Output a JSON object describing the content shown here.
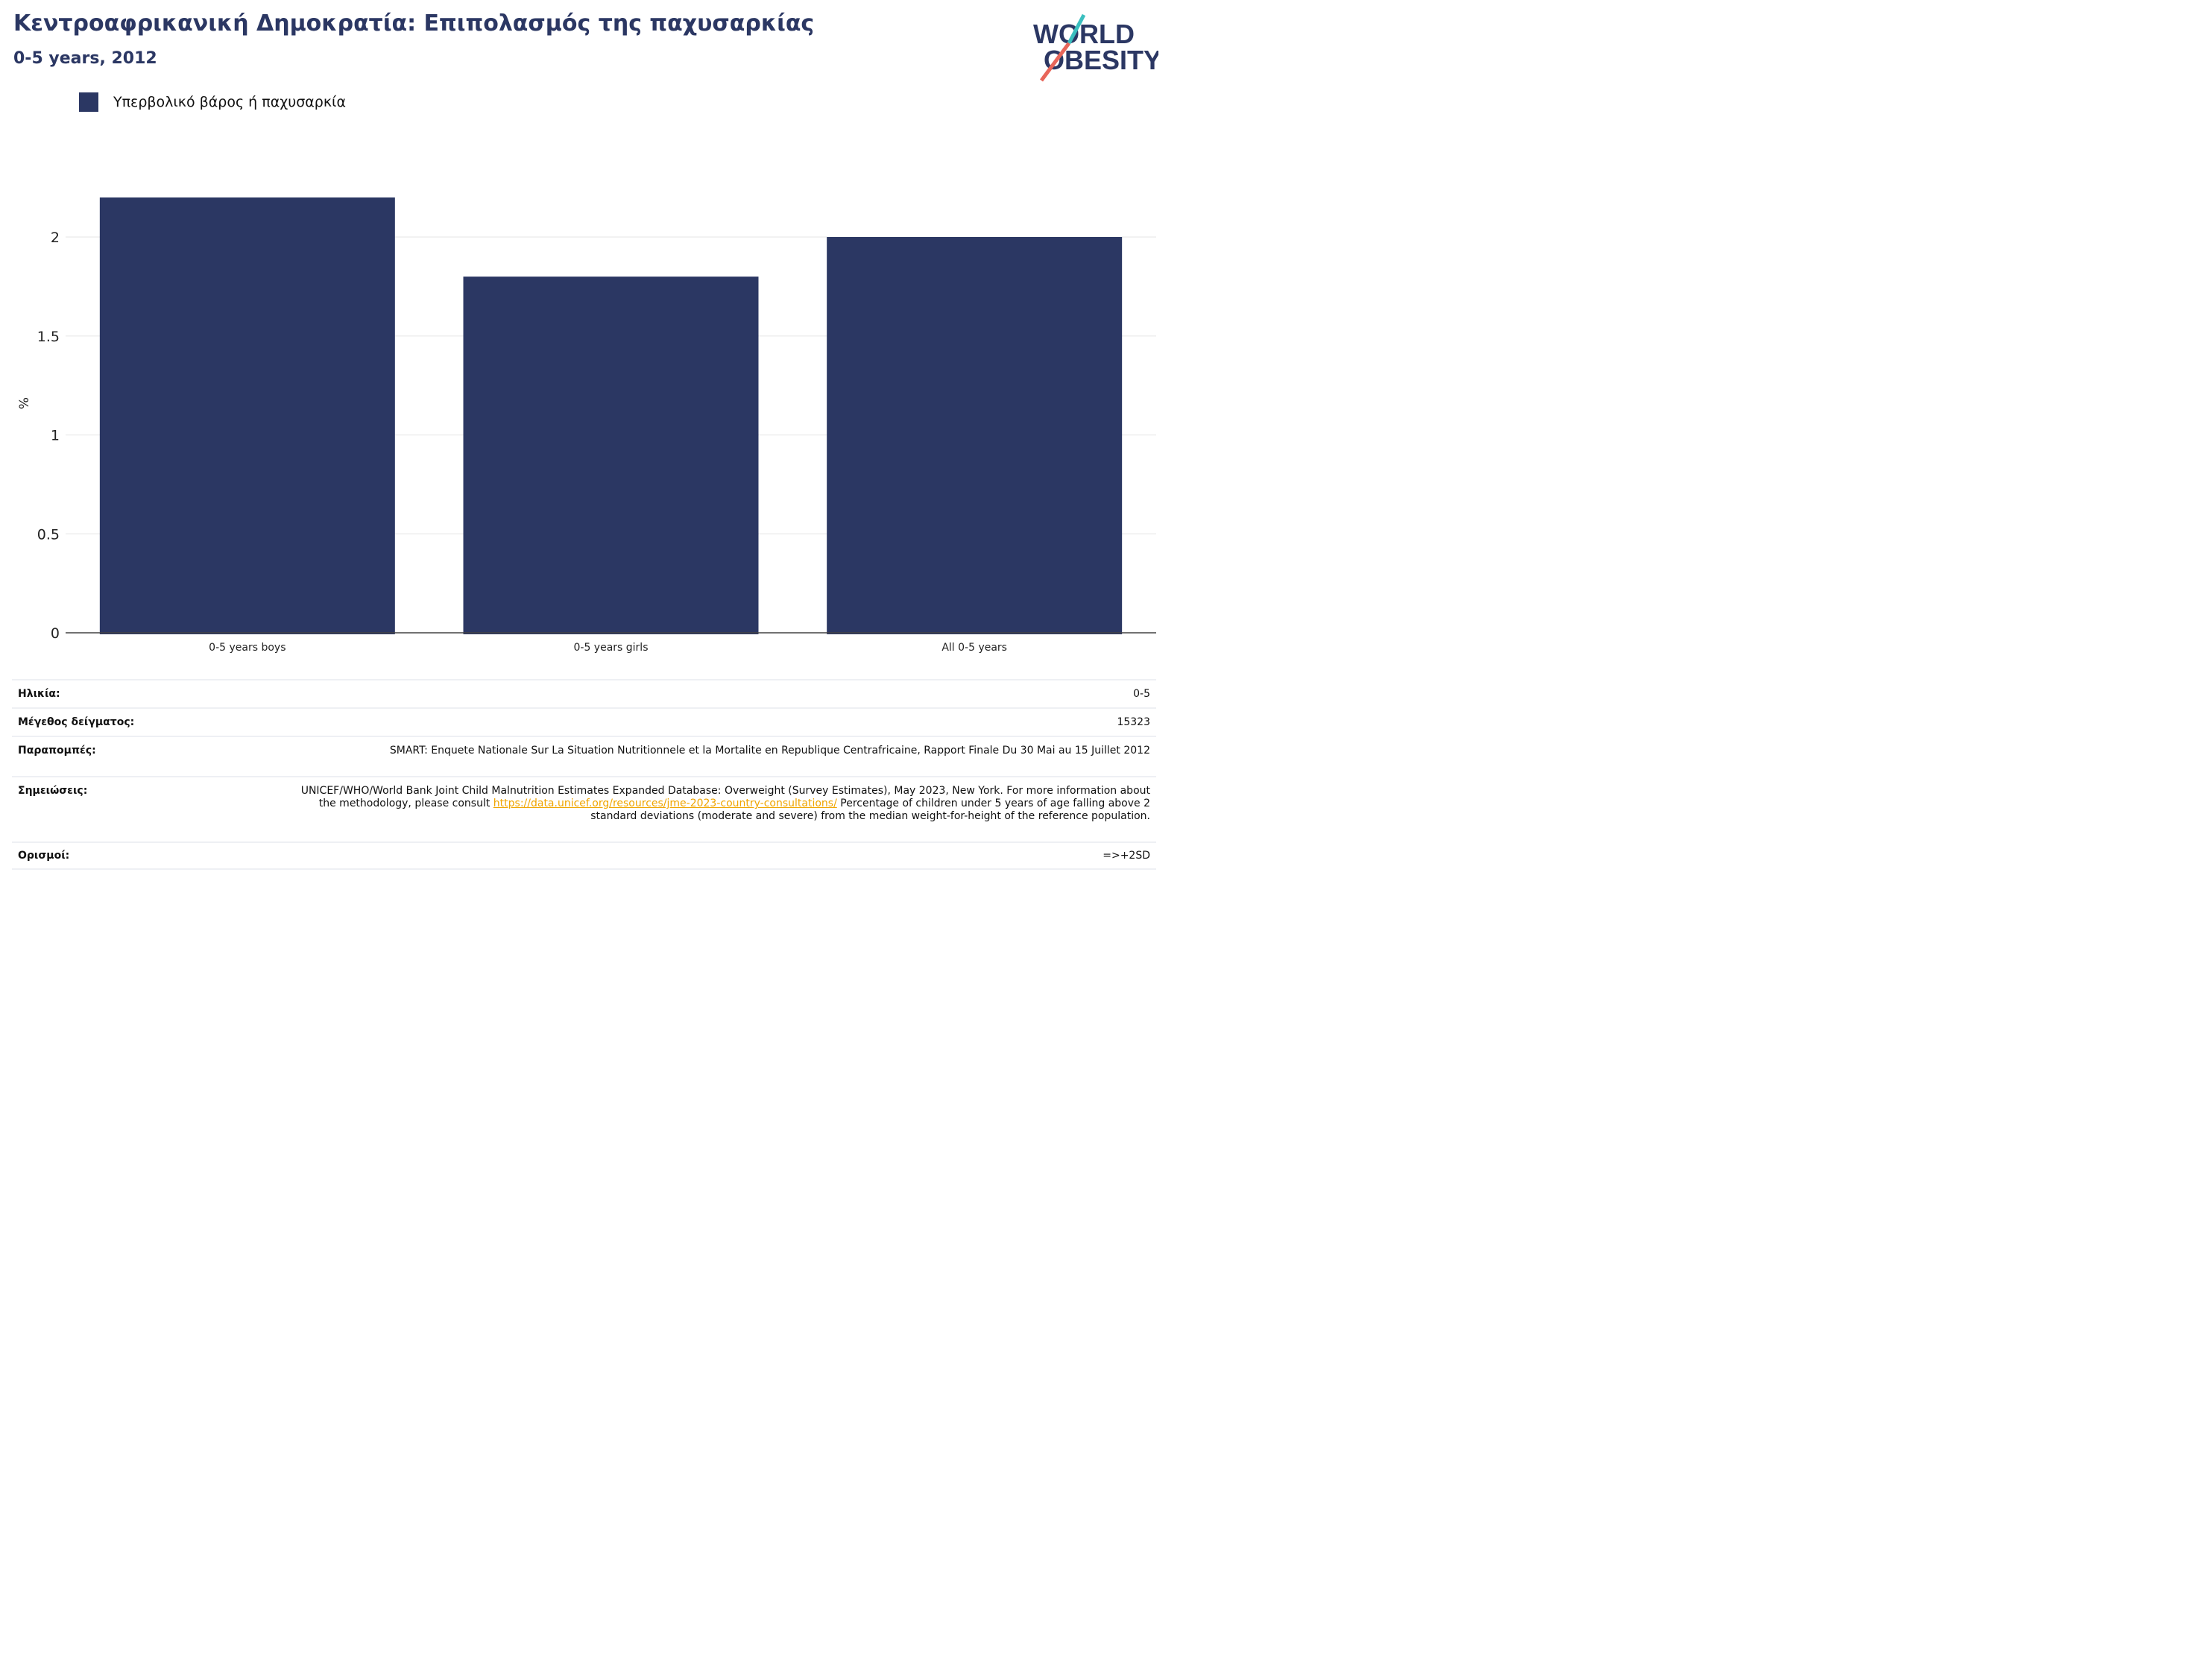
{
  "header": {
    "title": "Κεντροαφρικανική Δημοκρατία: Επιπολασμός της παχυσαρκίας",
    "subtitle": "0-5 years, 2012"
  },
  "logo": {
    "line1": "WORLD",
    "line2": "OBESITY",
    "colors": {
      "text": "#2b3763",
      "slash_top": "#3bbfbf",
      "slash_bottom": "#e8665a"
    }
  },
  "legend": {
    "label": "Υπερβολικό βάρος ή παχυσαρκία",
    "color": "#2b3763"
  },
  "chart_data": {
    "type": "bar",
    "categories": [
      "0-5 years boys",
      "0-5 years girls",
      "All 0-5 years"
    ],
    "series": [
      {
        "name": "Υπερβολικό βάρος ή παχυσαρκία",
        "values": [
          2.2,
          1.8,
          2.0
        ],
        "color": "#2b3763"
      }
    ],
    "ylabel": "%",
    "yticks": [
      "0",
      "0.5",
      "1",
      "1.5",
      "2"
    ],
    "ylim": [
      0,
      2.2
    ],
    "grid": true
  },
  "info": {
    "age": {
      "label": "Ηλικία:",
      "value": "0-5"
    },
    "sample": {
      "label": "Μέγεθος δείγματος:",
      "value": "15323"
    },
    "references": {
      "label": "Παραπομπές:",
      "value": "SMART: Enquete Nationale Sur La Situation Nutritionnele et la Mortalite en Republique Centrafricaine, Rapport Finale Du 30 Mai au 15 Juillet 2012"
    },
    "notes": {
      "label": "Σημειώσεις:",
      "text_before": "UNICEF/WHO/World Bank Joint Child Malnutrition Estimates Expanded Database: Overweight (Survey Estimates), May 2023, New York. For more information about the methodology, please consult ",
      "link": "https://data.unicef.org/resources/jme-2023-country-consultations/",
      "text_after": " Percentage of children under 5 years of age falling above 2 standard deviations (moderate and severe) from the median weight-for-height of the reference population."
    },
    "definitions": {
      "label": "Ορισμοί:",
      "value": "=>+2SD"
    }
  }
}
